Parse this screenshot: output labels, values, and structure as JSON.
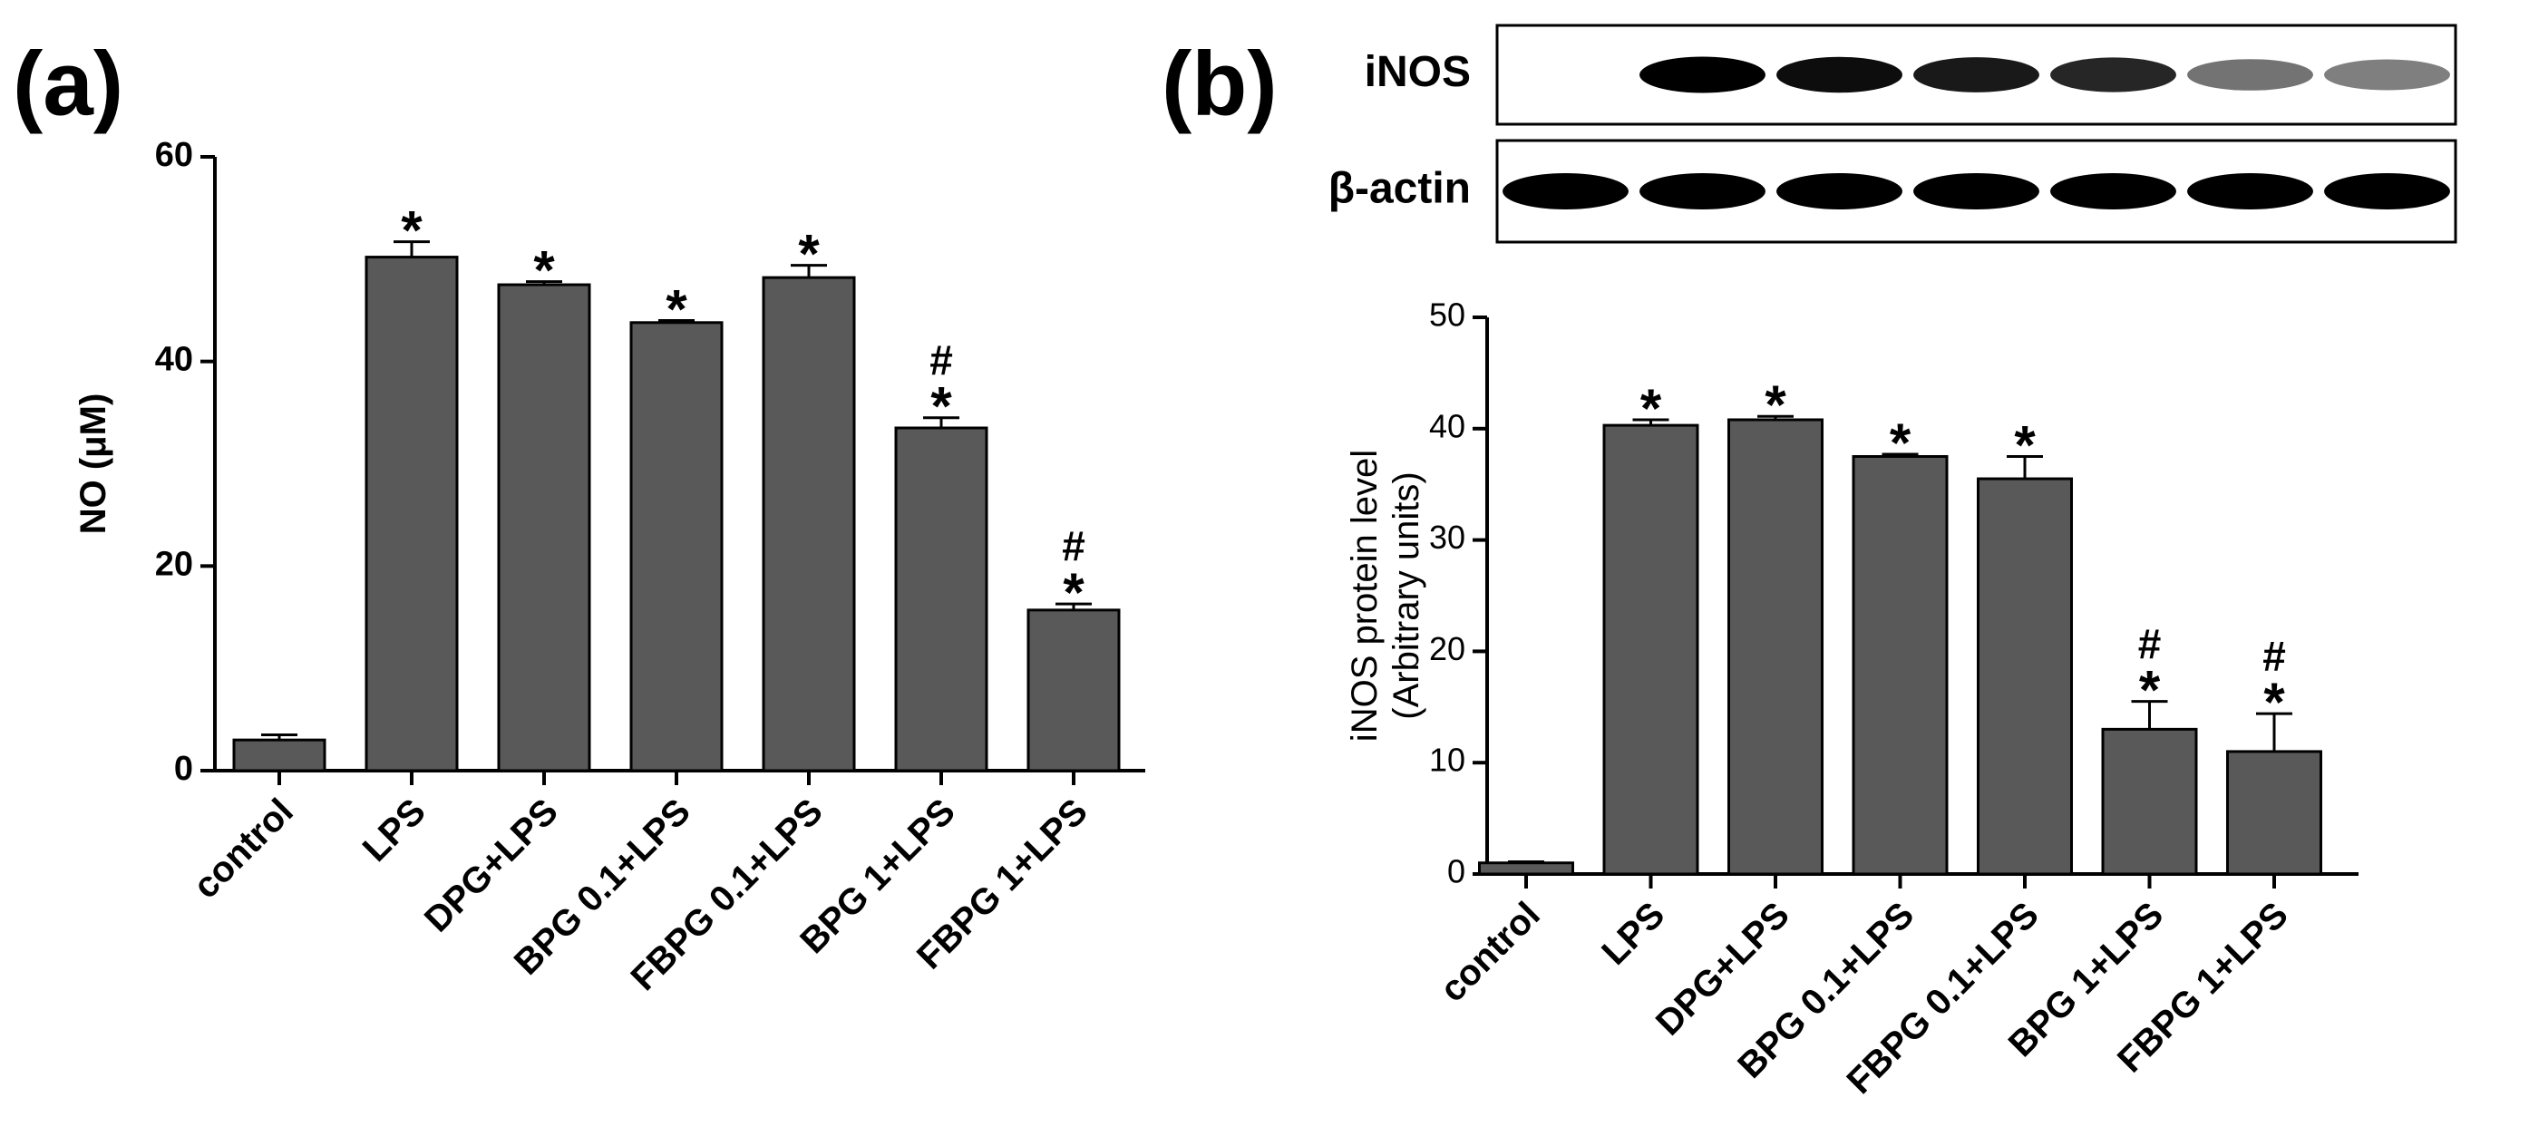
{
  "chart_data": [
    {
      "type": "bar",
      "panel_label": "(a)",
      "ylabel": [
        "NO (μM)"
      ],
      "categories": [
        "control",
        "LPS",
        "DPG+LPS",
        "BPG 0.1+LPS",
        "FBPG 0.1+LPS",
        "BPG 1+LPS",
        "FBPG 1+LPS"
      ],
      "values": [
        3,
        50.2,
        47.5,
        43.8,
        48.2,
        33.5,
        15.7
      ],
      "errors": [
        0.5,
        1.5,
        0.3,
        0.2,
        1.2,
        1.0,
        0.6
      ],
      "annotations": [
        null,
        [
          "*"
        ],
        [
          "*"
        ],
        [
          "*"
        ],
        [
          "*"
        ],
        [
          "#",
          "*"
        ],
        [
          "#",
          "*"
        ]
      ],
      "color": "#595959",
      "ylim": [
        0,
        60
      ],
      "yticks": [
        0,
        20,
        40,
        60
      ]
    },
    {
      "type": "bar",
      "panel_label": "(b)",
      "ylabel": [
        "iNOS protein level",
        "(Arbitrary units)"
      ],
      "blot_labels": [
        "iNOS",
        "β-actin"
      ],
      "categories": [
        "control",
        "LPS",
        "DPG+LPS",
        "BPG 0.1+LPS",
        "FBPG 0.1+LPS",
        "BPG 1+LPS",
        "FBPG 1+LPS"
      ],
      "values": [
        1,
        40.3,
        40.8,
        37.5,
        35.5,
        13,
        11
      ],
      "errors": [
        0.1,
        0.5,
        0.3,
        0.2,
        2,
        2.5,
        3.4
      ],
      "annotations": [
        null,
        [
          "*"
        ],
        [
          "*"
        ],
        [
          "*"
        ],
        [
          "*"
        ],
        [
          "#",
          "*"
        ],
        [
          "#",
          "*"
        ]
      ],
      "color": "#595959",
      "ylim": [
        0,
        50
      ],
      "yticks": [
        0,
        10,
        20,
        30,
        40,
        50
      ]
    }
  ]
}
